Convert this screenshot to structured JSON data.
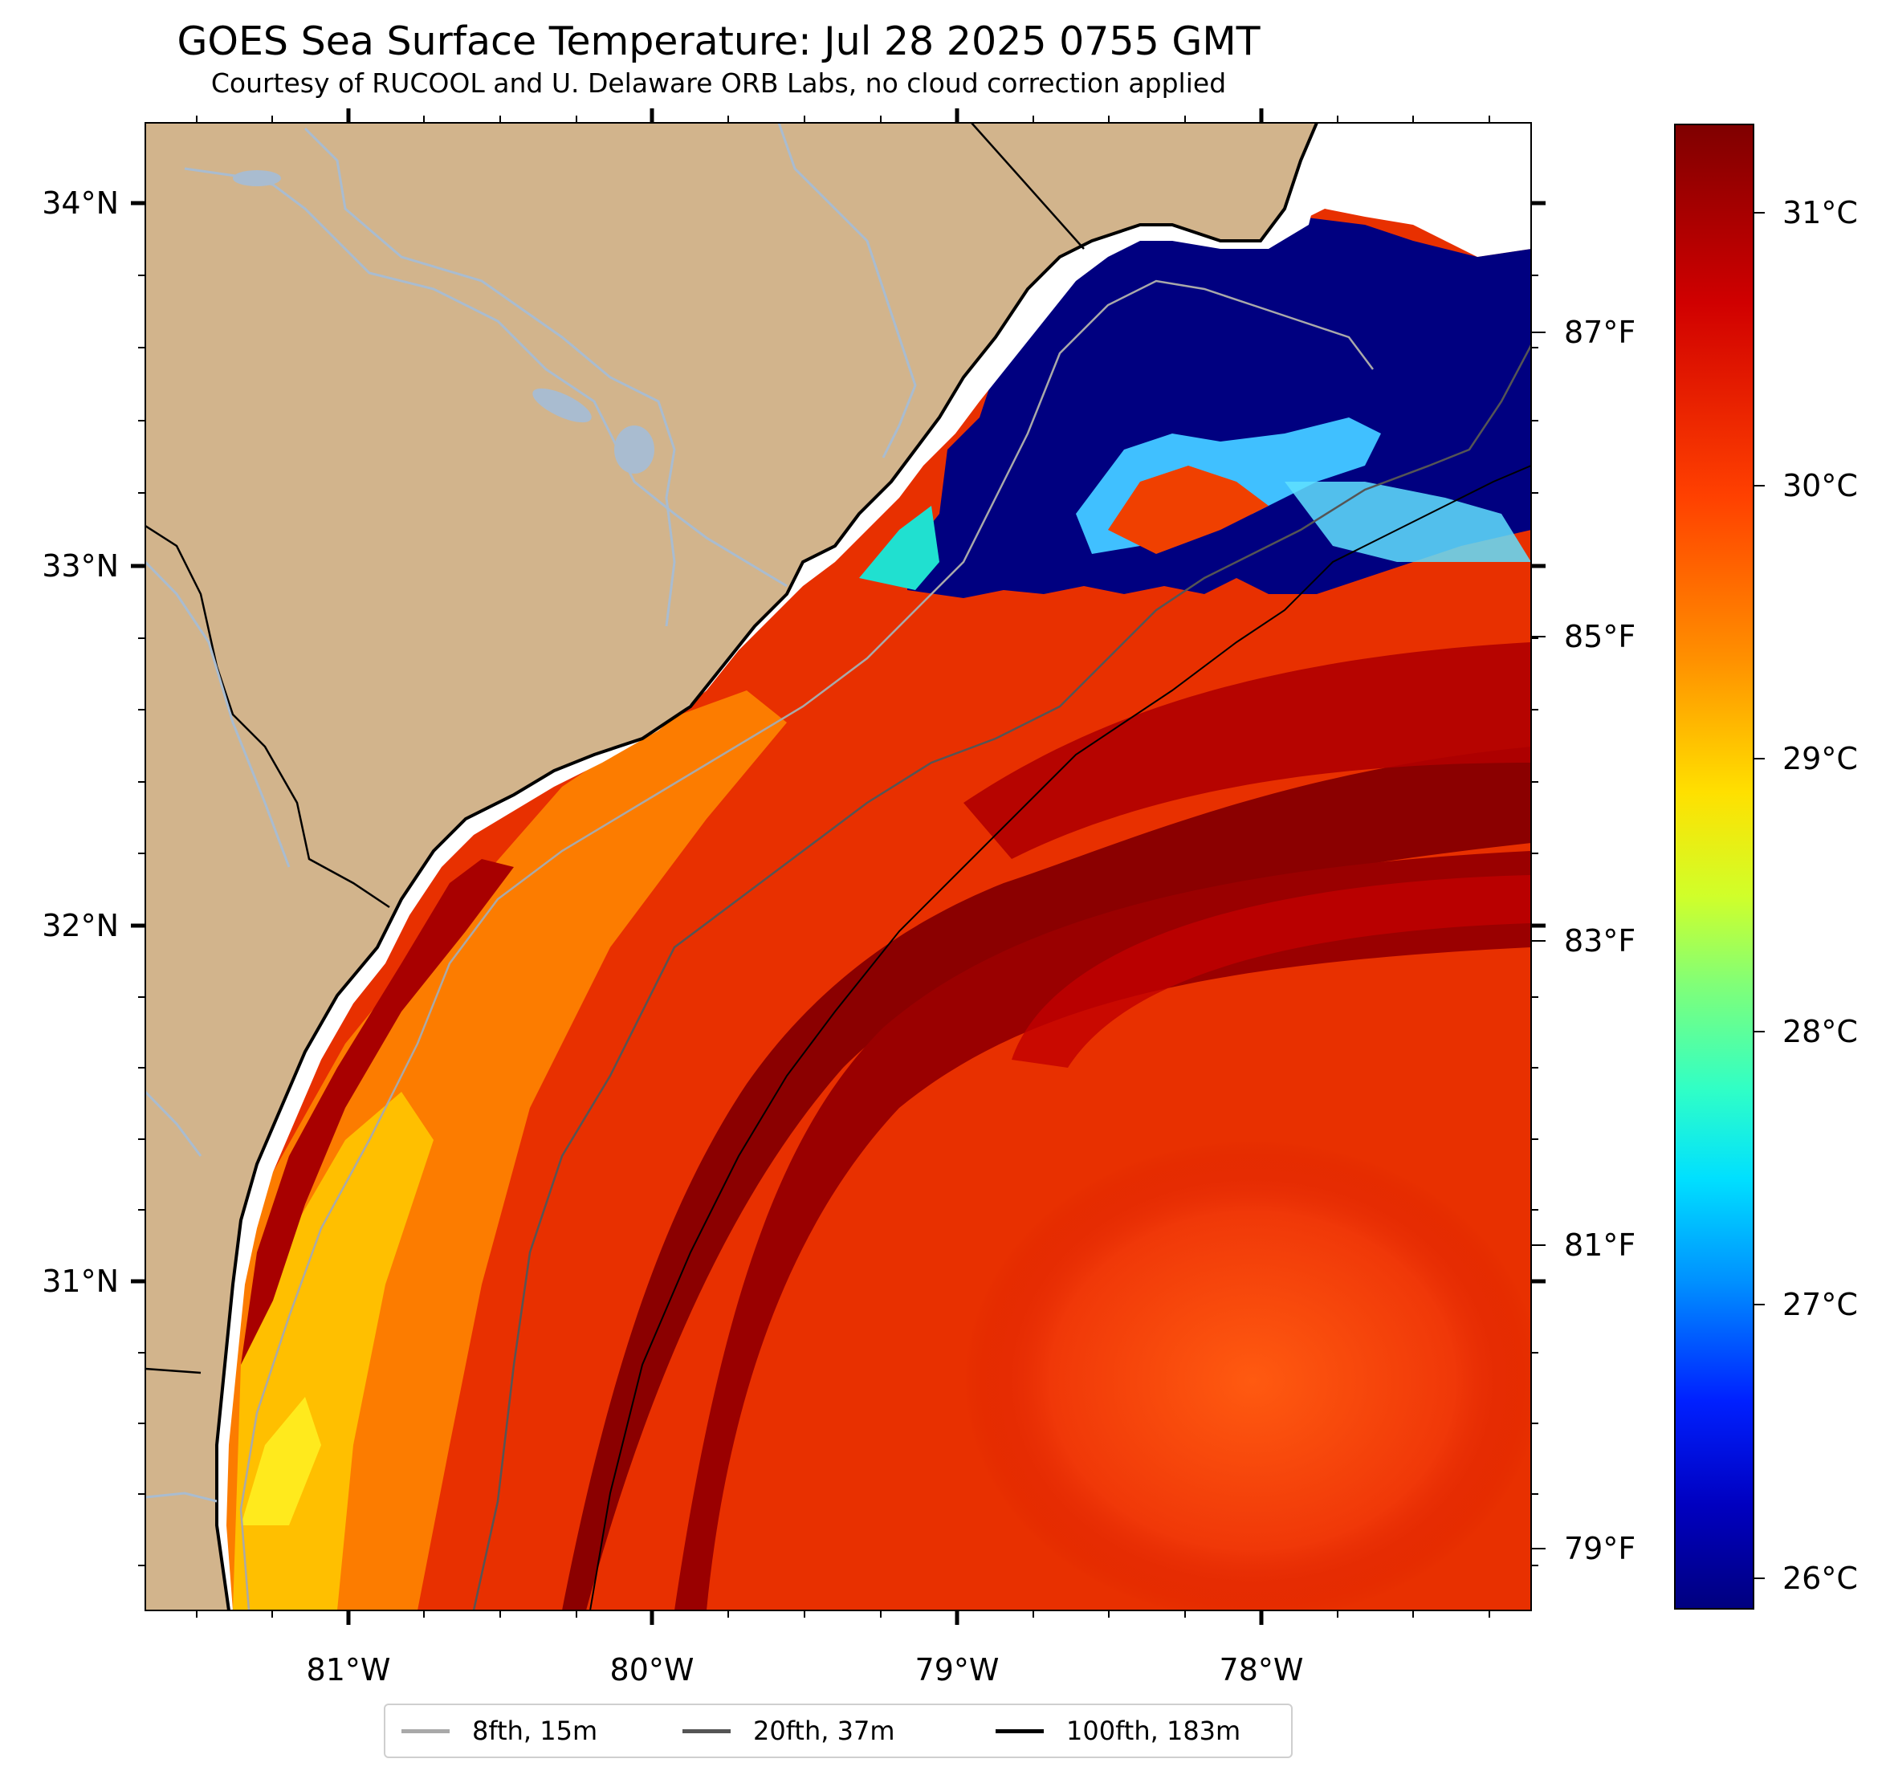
{
  "title": "GOES Sea Surface Temperature: Jul 28 2025 0755 GMT",
  "subtitle": "Courtesy of RUCOOL and U. Delaware ORB Labs, no cloud correction applied",
  "lat_labels": [
    "34°N",
    "33°N",
    "32°N",
    "31°N"
  ],
  "lon_labels": [
    "81°W",
    "80°W",
    "79°W",
    "78°W"
  ],
  "colorbar": {
    "celsius_labels": [
      "31°C",
      "30°C",
      "29°C",
      "28°C",
      "27°C",
      "26°C"
    ],
    "fahrenheit_labels": [
      "87°F",
      "85°F",
      "83°F",
      "81°F",
      "79°F"
    ],
    "colormap": [
      "#7f0000",
      "#ff2000",
      "#ff8c00",
      "#ffea00",
      "#8cff6a",
      "#20ffd6",
      "#00c0ff",
      "#0050ff",
      "#0000d0",
      "#00007f"
    ]
  },
  "legend": [
    {
      "label": "8fth, 15m",
      "color": "#a9a9a9"
    },
    {
      "label": "20fth, 37m",
      "color": "#555555"
    },
    {
      "label": "100fth, 183m",
      "color": "#000000"
    }
  ],
  "colors": {
    "land": "#d2b48c",
    "rivers": "#a9bcd0",
    "cold_water": "#000080",
    "hot_water": "#8b0000",
    "warm_water": "#e83000",
    "no_data": "#ffffff"
  }
}
